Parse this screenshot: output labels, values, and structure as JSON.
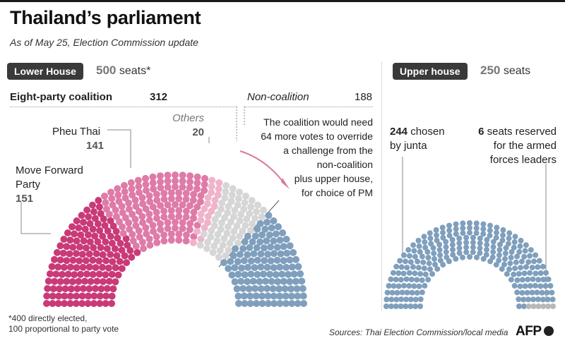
{
  "title": "Thailand’s parliament",
  "subtitle": "As of May 25, Election Commission update",
  "lower": {
    "pill": "Lower House",
    "seats_num": "500",
    "seats_word": " seats*",
    "coalition_label": "Eight-party coalition",
    "coalition_total": "312",
    "noncoalition_label": "Non-coalition",
    "noncoalition_total": "188",
    "party1_name_a": "Move Forward",
    "party1_name_b": "Party",
    "party1_seats": "151",
    "party2_name": "Pheu Thai",
    "party2_seats": "141",
    "party3_name": "Others",
    "party3_seats": "20",
    "annotation": [
      "The coalition would need",
      "64 more votes to override",
      "a challenge from the",
      "non-coalition",
      "plus upper house,",
      "for choice of PM"
    ],
    "footnote": [
      "*400 directly elected,",
      "100 proportional to party vote"
    ]
  },
  "upper": {
    "pill": "Upper house",
    "seats_num": "250",
    "seats_word": " seats",
    "junta_num": "244",
    "junta_text_a": " chosen",
    "junta_text_b": "by junta",
    "reserved_num": "6",
    "reserved_text_a": " seats reserved",
    "reserved_text_b": "for the armed",
    "reserved_text_c": "forces leaders"
  },
  "source": "Sources: Thai Election Commission/local media",
  "logo": "AFP",
  "colors": {
    "move_forward": "#c93a77",
    "pheu_thai": "#de7ba6",
    "others": "#efb4cb",
    "non_coalition_lower": "#d6d6d6",
    "non_coalition_upper": "#7f9fbd",
    "junta": "#7f9fbd",
    "armed_forces": "#b8b8b8",
    "arrow": "#d97a9c"
  },
  "chart_data": [
    {
      "type": "parliament",
      "series": [
        {
          "name": "Move Forward Party",
          "values": [
            151
          ]
        },
        {
          "name": "Pheu Thai",
          "values": [
            141
          ]
        },
        {
          "name": "Others",
          "values": [
            20
          ]
        },
        {
          "name": "Non-coalition",
          "values": [
            188
          ]
        }
      ],
      "total": 500
    },
    {
      "type": "parliament",
      "series": [
        {
          "name": "chosen by junta",
          "values": [
            244
          ]
        },
        {
          "name": "seats reserved for the armed forces leaders",
          "values": [
            6
          ]
        }
      ],
      "total": 250
    }
  ]
}
